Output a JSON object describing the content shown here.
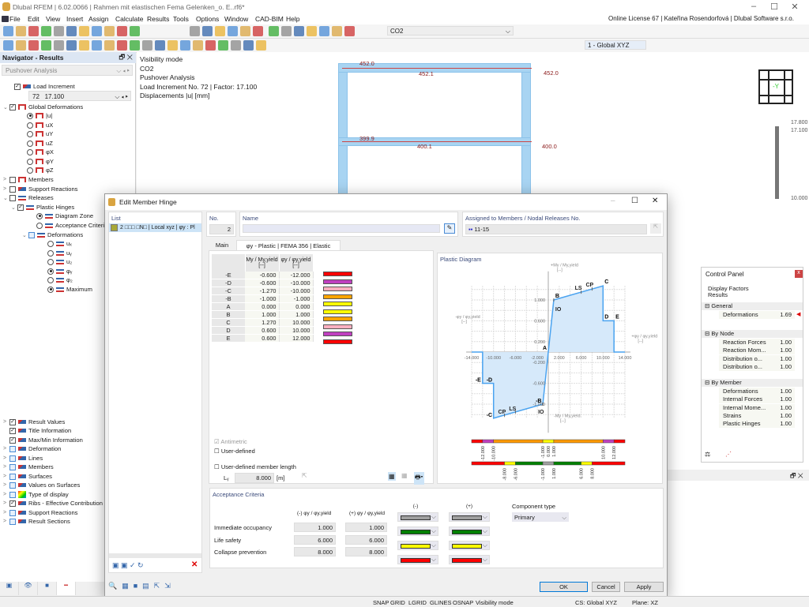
{
  "app": {
    "title": "Dlubal RFEM | 6.02.0066 | Rahmen mit elastischen Fema Gelenken_o. E..rf6*",
    "license": "Online License 67 | Kateřina Rosendorfová | Dlubal Software s.r.o."
  },
  "menu": [
    "File",
    "Edit",
    "View",
    "Insert",
    "Assign",
    "Calculate",
    "Results",
    "Tools",
    "Options",
    "Window",
    "CAD-BIM",
    "Help"
  ],
  "toolbar": {
    "loadcase": "CO2",
    "view_combo": "1 - Global XYZ",
    "icons1": [
      "new-icon",
      "open-icon",
      "dlubal-center-icon",
      "cloud-icon",
      "model-icon",
      "save-icon",
      "print-icon",
      "report-icon",
      "page-icon",
      "undo-icon",
      "redo-icon",
      "view1-icon",
      "view2-icon",
      "view3-icon",
      "view4-icon",
      "view5-icon",
      "view6-icon",
      "section-icon",
      "object-snap-icon",
      "target-icon",
      "bubble-icon",
      "table-icon",
      "load-wizard-icon",
      "load-wizard2-icon"
    ],
    "icons2": [
      "node-icon",
      "line-icon",
      "member-icon",
      "surface-icon",
      "support-icon",
      "hinge-icon",
      "release-icon",
      "load-icon",
      "member-load-icon",
      "grid-icon",
      "solid-icon",
      "set-icon",
      "opening-icon",
      "section-icon",
      "dimension-icon",
      "guide-icon",
      "tag-icon",
      "result-icon",
      "filter-icon",
      "deform-icon",
      "anim-icon"
    ]
  },
  "navigator": {
    "title": "Navigator - Results",
    "analysis": "Pushover Analysis",
    "increment_no": "72",
    "increment_factor": "17.100",
    "tree": [
      {
        "l": "Load Increment",
        "x": 10,
        "y": 109,
        "c": "checked",
        "i": "disp"
      },
      {
        "l": "Global Deformations",
        "x": 4,
        "y": 135,
        "e": "v",
        "c": "checked",
        "i": "frame"
      },
      {
        "l": "|u|",
        "x": 26,
        "y": 146,
        "c": "radio-on",
        "i": "frame"
      },
      {
        "l": "uX",
        "x": 26,
        "y": 158,
        "c": "radio",
        "i": "frame"
      },
      {
        "l": "uY",
        "x": 26,
        "y": 169,
        "c": "radio",
        "i": "frame"
      },
      {
        "l": "uZ",
        "x": 26,
        "y": 181,
        "c": "radio",
        "i": "frame"
      },
      {
        "l": "φX",
        "x": 26,
        "y": 192,
        "c": "radio",
        "i": "frame"
      },
      {
        "l": "φY",
        "x": 26,
        "y": 204,
        "c": "radio",
        "i": "frame"
      },
      {
        "l": "φZ",
        "x": 26,
        "y": 215,
        "c": "radio",
        "i": "frame"
      },
      {
        "l": "Members",
        "x": 4,
        "y": 227,
        "e": ">",
        "c": "check",
        "i": "frame"
      },
      {
        "l": "Support Reactions",
        "x": 4,
        "y": 239,
        "e": ">",
        "c": "check",
        "i": "disp"
      },
      {
        "l": "Releases",
        "x": 4,
        "y": 250,
        "e": "v",
        "c": "check",
        "i": "rel"
      },
      {
        "l": "Plastic Hinges",
        "x": 14,
        "y": 262,
        "e": "v",
        "c": "checked",
        "i": "rel"
      },
      {
        "l": "Diagram Zone",
        "x": 38,
        "y": 273,
        "c": "radio-on",
        "i": "rel"
      },
      {
        "l": "Acceptance Criteria",
        "x": 38,
        "y": 285,
        "c": "radio",
        "i": "rel"
      },
      {
        "l": "Deformations",
        "x": 28,
        "y": 297,
        "e": "v",
        "c": "blue",
        "i": "rel"
      },
      {
        "l": "uₓ",
        "x": 52,
        "y": 308,
        "c": "radio",
        "i": "rel"
      },
      {
        "l": "uᵧ",
        "x": 52,
        "y": 320,
        "c": "radio",
        "i": "rel"
      },
      {
        "l": "u₂",
        "x": 52,
        "y": 331,
        "c": "radio",
        "i": "rel"
      },
      {
        "l": "φᵧ",
        "x": 52,
        "y": 343,
        "c": "radio-on",
        "i": "rel"
      },
      {
        "l": "φ₂",
        "x": 52,
        "y": 354,
        "c": "radio",
        "i": "rel"
      },
      {
        "l": "Maximum",
        "x": 52,
        "y": 366,
        "c": "radio-on",
        "i": "rel"
      },
      {
        "l": "Result Values",
        "x": 4,
        "y": 534,
        "e": ">",
        "c": "checked",
        "i": "disp"
      },
      {
        "l": "Title Information",
        "x": 4,
        "y": 545,
        "c": "checked",
        "i": "disp"
      },
      {
        "l": "Max/Min Information",
        "x": 4,
        "y": 557,
        "c": "checked",
        "i": "disp"
      },
      {
        "l": "Deformation",
        "x": 4,
        "y": 568,
        "e": ">",
        "c": "blue",
        "i": "disp"
      },
      {
        "l": "Lines",
        "x": 4,
        "y": 580,
        "e": ">",
        "c": "blue",
        "i": "disp"
      },
      {
        "l": "Members",
        "x": 4,
        "y": 591,
        "e": ">",
        "c": "blue",
        "i": "disp"
      },
      {
        "l": "Surfaces",
        "x": 4,
        "y": 603,
        "e": ">",
        "c": "blue",
        "i": "disp"
      },
      {
        "l": "Values on Surfaces",
        "x": 4,
        "y": 614,
        "e": ">",
        "c": "blue",
        "i": "disp"
      },
      {
        "l": "Type of display",
        "x": 4,
        "y": 626,
        "e": ">",
        "c": "blue",
        "i": "grad"
      },
      {
        "l": "Ribs - Effective Contribution",
        "x": 4,
        "y": 637,
        "e": ">",
        "c": "checked",
        "i": "disp"
      },
      {
        "l": "Support Reactions",
        "x": 4,
        "y": 649,
        "e": ">",
        "c": "blue",
        "i": "disp"
      },
      {
        "l": "Result Sections",
        "x": 4,
        "y": 660,
        "e": ">",
        "c": "blue",
        "i": "disp"
      }
    ],
    "bottom_tabs": [
      "data-icon",
      "eye-icon",
      "camera-icon",
      "results-icon"
    ]
  },
  "viewport": {
    "info": [
      "Visibility mode",
      "CO2",
      "Pushover Analysis",
      "Load Increment No. 72 | Factor: 17.100",
      "Displacements |u| [mm]"
    ],
    "values": [
      "452.0",
      "452.1",
      "452.0",
      "399.9",
      "400.1",
      "400.0"
    ],
    "cube_label": "-Y",
    "scale": [
      "17.800",
      "17.100",
      "10.000"
    ]
  },
  "dialog": {
    "title": "Edit Member Hinge",
    "list_label": "List",
    "list_item": "2 □□□ □N□ | Local xyz | φy : Pl",
    "no_label": "No.",
    "no_value": "2",
    "name_label": "Name",
    "name_value": "",
    "assigned_label": "Assigned to Members / Nodal Releases No.",
    "assigned_value": "11-15",
    "tabs": [
      "Main",
      "φy - Plastic | FEMA 356 | Elastic"
    ],
    "table": {
      "col1": "My / My,yield",
      "col2": "φy / φy,yield",
      "unit": "[--]",
      "rows": [
        {
          "p": "-E",
          "m": "-0.600",
          "f": "-12.000",
          "c": "#ff0000"
        },
        {
          "p": "-D",
          "m": "-0.600",
          "f": "-10.000",
          "c": "#c040c0"
        },
        {
          "p": "-C",
          "m": "-1.270",
          "f": "-10.000",
          "c": "#ffb0c0"
        },
        {
          "p": "-B",
          "m": "-1.000",
          "f": "-1.000",
          "c": "#ffa500"
        },
        {
          "p": "A",
          "m": "0.000",
          "f": "0.000",
          "c": "#ffff00"
        },
        {
          "p": "B",
          "m": "1.000",
          "f": "1.000",
          "c": "#ffff00"
        },
        {
          "p": "C",
          "m": "1.270",
          "f": "10.000",
          "c": "#ffa500"
        },
        {
          "p": "D",
          "m": "0.600",
          "f": "10.000",
          "c": "#ffb0c0"
        },
        {
          "p": "E",
          "m": "0.600",
          "f": "12.000",
          "c": "#c040c0"
        },
        {
          "p": "",
          "m": "",
          "f": "",
          "c": "#ff0000"
        }
      ]
    },
    "antimetric": "Antimetric",
    "user_defined": "User-defined",
    "user_len": "User-defined member length",
    "lsy_label": "Lᵧ",
    "lsy_value": "8.000",
    "lsy_unit": "[m]",
    "plastic": {
      "title": "Plastic Diagram",
      "ylabel_pos": "+My / My,yield",
      "ylabel_neg": "-My / My,yield",
      "xlabel_pos": "+φy / φy,yield",
      "xlabel_neg": "-φy / φy,yield",
      "unit": "[--]",
      "xticks": [
        -14,
        -10,
        -6,
        -2,
        2,
        6,
        10,
        14
      ],
      "xtick_labels": [
        "-14.000",
        "-10.000",
        "-6.000",
        "-2.000",
        "2.000",
        "6.000",
        "10.000",
        "14.000"
      ],
      "yticks": [
        1,
        0.6,
        0.2,
        -0.2,
        -0.6,
        -1
      ],
      "ytick_labels": [
        "1.000",
        "0.600",
        "0.200",
        "-0.200",
        "-0.600",
        "-1.000"
      ],
      "points": [
        {
          "x": -14,
          "y": 0
        },
        {
          "x": -12,
          "y": 0
        },
        {
          "x": -12,
          "y": -0.6,
          "n": "-E"
        },
        {
          "x": -10,
          "y": -0.6,
          "n": "-D"
        },
        {
          "x": -10,
          "y": -1.27,
          "n": "-C"
        },
        {
          "x": -1,
          "y": -1,
          "n": "-B"
        },
        {
          "x": 0,
          "y": 0,
          "n": "A"
        },
        {
          "x": 1,
          "y": 1,
          "n": "B"
        },
        {
          "x": 10,
          "y": 1.27,
          "n": "C"
        },
        {
          "x": 10,
          "y": 0.6,
          "n": "D"
        },
        {
          "x": 12,
          "y": 0.6,
          "n": "E"
        },
        {
          "x": 12,
          "y": 0
        },
        {
          "x": 14,
          "y": 0
        }
      ],
      "criteria": [
        {
          "n": "IO",
          "x": 1
        },
        {
          "n": "LS",
          "x": 6
        },
        {
          "n": "CP",
          "x": 8
        },
        {
          "n": "IO",
          "x": -1
        },
        {
          "n": "LS",
          "x": -6
        },
        {
          "n": "CP",
          "x": -8
        }
      ],
      "zone_bar": [
        {
          "a": -14,
          "b": -12,
          "c": "#ff0000"
        },
        {
          "a": -12,
          "b": -10,
          "c": "#c040c0"
        },
        {
          "a": -10,
          "b": -1,
          "c": "#ff9900"
        },
        {
          "a": -1,
          "b": 1,
          "c": "#ffff00"
        },
        {
          "a": 1,
          "b": 10,
          "c": "#ff9900"
        },
        {
          "a": 10,
          "b": 12,
          "c": "#c040c0"
        },
        {
          "a": 12,
          "b": 14,
          "c": "#ff0000"
        }
      ],
      "zone_labels": [
        "-12.000",
        "-10.000",
        "-1.000",
        "0.000",
        "1.000",
        "10.000",
        "12.000"
      ],
      "zone_label_x": [
        -12,
        -10,
        -1,
        0,
        1,
        10,
        12
      ],
      "acc_bar": [
        {
          "a": -14,
          "b": -8,
          "c": "#ff0000"
        },
        {
          "a": -8,
          "b": -6,
          "c": "#ffff00"
        },
        {
          "a": -6,
          "b": -1,
          "c": "#008000"
        },
        {
          "a": -1,
          "b": 1,
          "c": "#a0a0a0"
        },
        {
          "a": 1,
          "b": 6,
          "c": "#008000"
        },
        {
          "a": 6,
          "b": 8,
          "c": "#ffff00"
        },
        {
          "a": 8,
          "b": 14,
          "c": "#ff0000"
        }
      ],
      "acc_labels": [
        "-8.000",
        "-6.000",
        "-1.000",
        "1.000",
        "6.000",
        "8.000"
      ],
      "acc_label_x": [
        -8,
        -6,
        -1,
        1,
        6,
        8
      ]
    },
    "acceptance": {
      "title": "Acceptance Criteria",
      "col_neg": "(-) φy / φy,yield",
      "col_pos": "(+) φy / φy,yield",
      "col_c_neg": "(-)",
      "col_c_pos": "(+)",
      "component_label": "Component type",
      "component_value": "Primary",
      "rows": [
        {
          "l": "Immediate occupancy",
          "n": "1.000",
          "p": "1.000"
        },
        {
          "l": "Life safety",
          "n": "6.000",
          "p": "6.000"
        },
        {
          "l": "Collapse prevention",
          "n": "8.000",
          "p": "8.000"
        }
      ],
      "colors": [
        "#a0a0a0",
        "#008000",
        "#ffff00",
        "#ff0000"
      ]
    },
    "buttons": {
      "ok": "OK",
      "cancel": "Cancel",
      "apply": "Apply"
    }
  },
  "control_panel": {
    "title": "Control Panel",
    "line1": "Display Factors",
    "line2": "Results",
    "groups": [
      {
        "n": "General",
        "y": 0,
        "rows": [
          {
            "l": "Deformations",
            "v": "1.69"
          }
        ]
      },
      {
        "n": "By Node",
        "y": 35,
        "rows": [
          {
            "l": "Reaction Forces",
            "v": "1.00"
          },
          {
            "l": "Reaction Mom...",
            "v": "1.00"
          },
          {
            "l": "Distribution o...",
            "v": "1.00"
          },
          {
            "l": "Distribution o...",
            "v": "1.00"
          }
        ]
      },
      {
        "n": "By Member",
        "y": 97,
        "rows": [
          {
            "l": "Deformations",
            "v": "1.00"
          },
          {
            "l": "Internal Forces",
            "v": "1.00"
          },
          {
            "l": "Internal Mome...",
            "v": "1.00"
          },
          {
            "l": "Strains",
            "v": "1.00"
          },
          {
            "l": "Plastic Hinges",
            "v": "1.00"
          }
        ]
      }
    ]
  },
  "status": [
    "SNAP",
    "GRID",
    "LGRID",
    "GLINES",
    "OSNAP",
    "Visibility mode",
    "CS: Global XYZ",
    "Plane: XZ"
  ]
}
